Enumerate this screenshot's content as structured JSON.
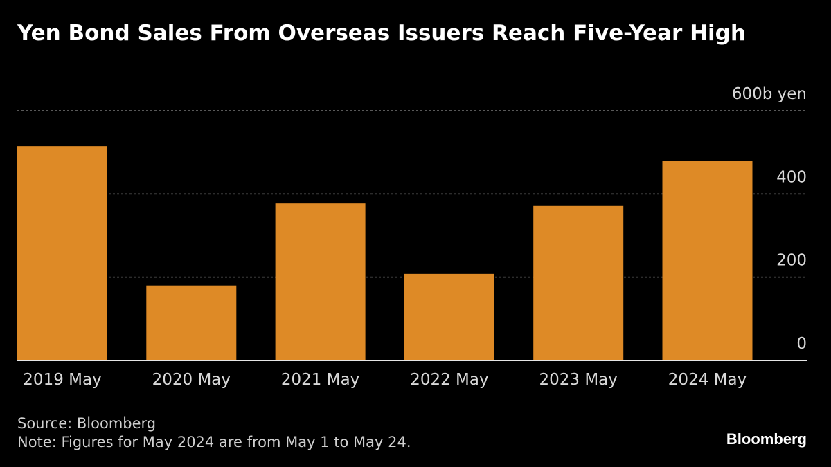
{
  "chart_data": {
    "type": "bar",
    "title": "Yen Bond Sales From Overseas Issuers Reach Five-Year High",
    "categories": [
      "2019 May",
      "2020 May",
      "2021 May",
      "2022 May",
      "2023 May",
      "2024 May"
    ],
    "values": [
      515,
      180,
      377,
      208,
      371,
      479
    ],
    "color": "#de8a26",
    "ylim": [
      0,
      600
    ],
    "yticks": [
      0,
      200,
      400,
      {
        "value": 600,
        "label": "600b yen"
      }
    ],
    "grid": true,
    "source": "Source: Bloomberg",
    "note": "Note: Figures for May 2024 are from May 1 to May 24.",
    "brand": "Bloomberg"
  }
}
